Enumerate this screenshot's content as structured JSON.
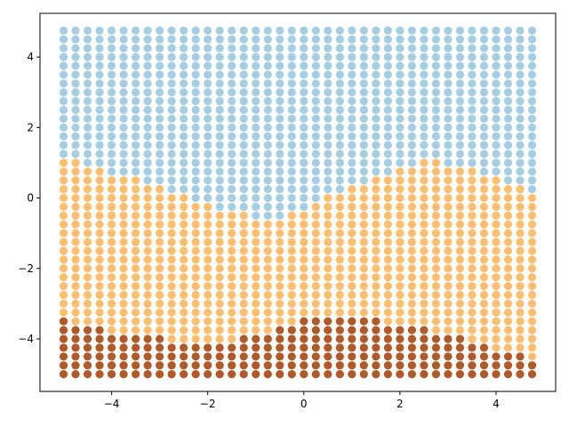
{
  "chart_data": {
    "type": "scatter",
    "title": "",
    "xlabel": "",
    "ylabel": "",
    "xlim": [
      -5.49,
      5.24
    ],
    "ylim": [
      -5.49,
      5.24
    ],
    "grid": false,
    "legend": "none",
    "x_ticks": [
      -4,
      -2,
      0,
      2,
      4
    ],
    "y_ticks": [
      -4,
      -2,
      0,
      2,
      4
    ],
    "x_tick_labels": [
      "−4",
      "−2",
      "0",
      "2",
      "4"
    ],
    "y_tick_labels": [
      "−4",
      "−2",
      "0",
      "2",
      "4"
    ],
    "grid_points": {
      "x_start": -5,
      "x_end": 4.75,
      "y_start": -5,
      "y_end": 4.75,
      "step": 0.25
    },
    "colors": {
      "top": "#a6cee3",
      "middle": "#fdbf6f",
      "bottom": "#b15928"
    },
    "top_region_lowest_y": [
      1.25,
      1.25,
      1.0,
      1.0,
      0.75,
      0.75,
      0.75,
      0.5,
      0.5,
      0.25,
      0.25,
      0.0,
      0.0,
      -0.25,
      -0.25,
      -0.25,
      -0.5,
      -0.5,
      -0.5,
      -0.25,
      -0.25,
      0.0,
      0.25,
      0.25,
      0.5,
      0.5,
      0.75,
      0.75,
      1.0,
      1.0,
      1.25,
      1.25,
      1.0,
      1.0,
      1.0,
      0.75,
      0.75,
      0.5,
      0.5,
      0.25
    ],
    "bottom_region_highest_y": [
      -3.5,
      -3.75,
      -3.75,
      -3.75,
      -4.0,
      -4.0,
      -4.0,
      -4.0,
      -4.0,
      -4.25,
      -4.25,
      -4.25,
      -4.25,
      -4.25,
      -4.25,
      -4.0,
      -4.0,
      -4.0,
      -3.75,
      -3.75,
      -3.5,
      -3.5,
      -3.5,
      -3.5,
      -3.5,
      -3.5,
      -3.5,
      -3.75,
      -3.75,
      -3.75,
      -3.75,
      -4.0,
      -4.0,
      -4.0,
      -4.25,
      -4.25,
      -4.5,
      -4.5,
      -4.5,
      -4.75
    ]
  }
}
